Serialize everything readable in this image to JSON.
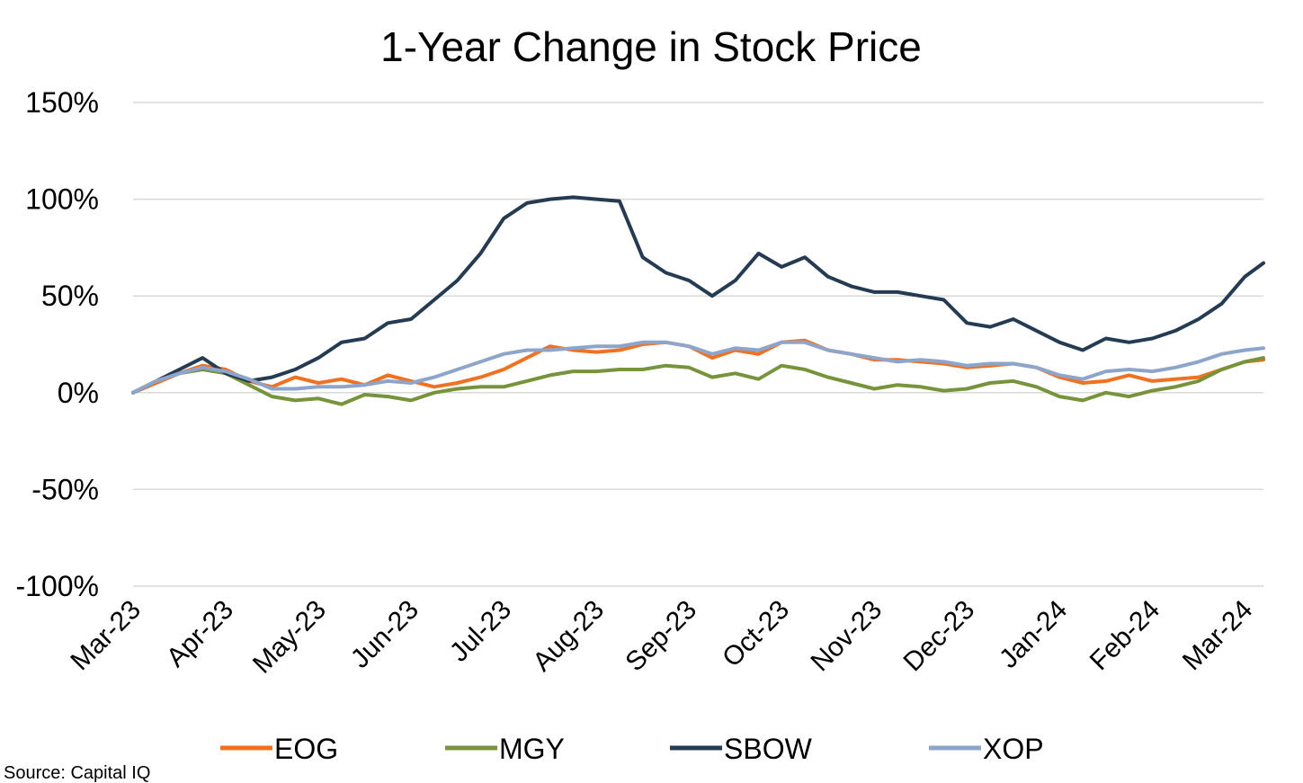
{
  "chart_data": {
    "type": "line",
    "title": "1-Year Change in Stock Price",
    "xlabel": "",
    "ylabel": "",
    "ylim": [
      -100,
      150
    ],
    "y_ticks": [
      "150%",
      "100%",
      "50%",
      "0%",
      "-50%",
      "-100%"
    ],
    "y_tick_values": [
      150,
      100,
      50,
      0,
      -50,
      -100
    ],
    "x_ticks": [
      "Mar-23",
      "Apr-23",
      "May-23",
      "Jun-23",
      "Jul-23",
      "Aug-23",
      "Sep-23",
      "Oct-23",
      "Nov-23",
      "Dec-23",
      "Jan-24",
      "Feb-24",
      "Mar-24"
    ],
    "x_tick_values": [
      0,
      1,
      2,
      3,
      4,
      5,
      6,
      7,
      8,
      9,
      10,
      11,
      12
    ],
    "grid": true,
    "legend_position": "bottom",
    "x": [
      0,
      0.25,
      0.5,
      0.75,
      1.0,
      1.25,
      1.5,
      1.75,
      2.0,
      2.25,
      2.5,
      2.75,
      3.0,
      3.25,
      3.5,
      3.75,
      4.0,
      4.25,
      4.5,
      4.75,
      5.0,
      5.25,
      5.5,
      5.75,
      6.0,
      6.25,
      6.5,
      6.75,
      7.0,
      7.25,
      7.5,
      7.75,
      8.0,
      8.25,
      8.5,
      8.75,
      9.0,
      9.25,
      9.5,
      9.75,
      10.0,
      10.25,
      10.5,
      10.75,
      11.0,
      11.25,
      11.5,
      11.75,
      12.0,
      12.2
    ],
    "series": [
      {
        "name": "EOG",
        "color": "#f07122",
        "values": [
          0,
          5,
          10,
          14,
          12,
          6,
          3,
          8,
          5,
          7,
          4,
          9,
          6,
          3,
          5,
          8,
          12,
          18,
          24,
          22,
          21,
          22,
          25,
          26,
          24,
          18,
          22,
          20,
          26,
          27,
          22,
          20,
          17,
          17,
          16,
          15,
          13,
          14,
          15,
          13,
          8,
          5,
          6,
          9,
          6,
          7,
          8,
          12,
          16,
          17
        ]
      },
      {
        "name": "MGY",
        "color": "#77933c",
        "values": [
          0,
          6,
          10,
          12,
          10,
          4,
          -2,
          -4,
          -3,
          -6,
          -1,
          -2,
          -4,
          0,
          2,
          3,
          3,
          6,
          9,
          11,
          11,
          12,
          12,
          14,
          13,
          8,
          10,
          7,
          14,
          12,
          8,
          5,
          2,
          4,
          3,
          1,
          2,
          5,
          6,
          3,
          -2,
          -4,
          0,
          -2,
          1,
          3,
          6,
          12,
          16,
          18
        ]
      },
      {
        "name": "SBOW",
        "color": "#253b52",
        "values": [
          0,
          6,
          12,
          18,
          10,
          6,
          8,
          12,
          18,
          26,
          28,
          36,
          38,
          48,
          58,
          72,
          90,
          98,
          100,
          101,
          100,
          99,
          70,
          62,
          58,
          50,
          58,
          72,
          65,
          70,
          60,
          55,
          52,
          52,
          50,
          48,
          36,
          34,
          38,
          32,
          26,
          22,
          28,
          26,
          28,
          32,
          38,
          46,
          60,
          67
        ]
      },
      {
        "name": "XOP",
        "color": "#8ea5cb",
        "values": [
          0,
          6,
          10,
          13,
          11,
          7,
          2,
          2,
          3,
          3,
          4,
          6,
          5,
          8,
          12,
          16,
          20,
          22,
          22,
          23,
          24,
          24,
          26,
          26,
          24,
          20,
          23,
          22,
          26,
          26,
          22,
          20,
          18,
          16,
          17,
          16,
          14,
          15,
          15,
          13,
          9,
          7,
          11,
          12,
          11,
          13,
          16,
          20,
          22,
          23
        ]
      }
    ],
    "source": "Source: Capital IQ"
  }
}
